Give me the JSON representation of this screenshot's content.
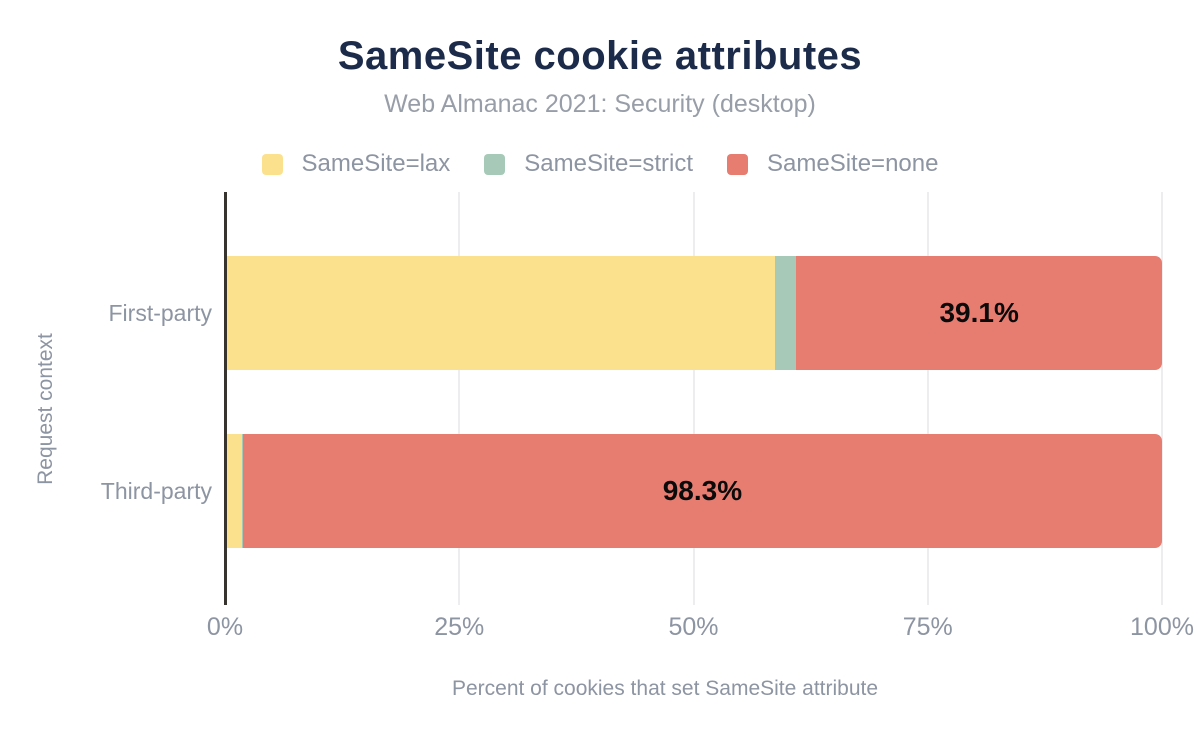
{
  "title": "SameSite cookie attributes",
  "subtitle": "Web Almanac 2021: Security (desktop)",
  "legend": [
    {
      "label": "SameSite=lax",
      "color": "#fbe18e"
    },
    {
      "label": "SameSite=strict",
      "color": "#a6cab7"
    },
    {
      "label": "SameSite=none",
      "color": "#e77c71"
    }
  ],
  "colors": {
    "title": "#1c2b4a",
    "text_gray": "#8d94a2",
    "axis_line": "#37332e",
    "gridline": "#ededef",
    "value_label": "#0b0b0b"
  },
  "chart_data": {
    "type": "bar",
    "orientation": "horizontal",
    "stacked": true,
    "title": "SameSite cookie attributes",
    "subtitle": "Web Almanac 2021: Security (desktop)",
    "categories": [
      "First-party",
      "Third-party"
    ],
    "series": [
      {
        "name": "SameSite=lax",
        "color": "#fbe18e",
        "values": [
          58.6,
          1.6
        ],
        "labels": [
          null,
          null
        ]
      },
      {
        "name": "SameSite=strict",
        "color": "#a6cab7",
        "values": [
          2.3,
          0.1
        ],
        "labels": [
          null,
          null
        ]
      },
      {
        "name": "SameSite=none",
        "color": "#e77c71",
        "values": [
          39.1,
          98.3
        ],
        "labels": [
          "39.1%",
          "98.3%"
        ]
      }
    ],
    "xlabel": "Percent of cookies that set SameSite attribute",
    "ylabel": "Request context",
    "xlim": [
      0,
      100
    ],
    "x_ticks": [
      {
        "value": 0,
        "label": "0%"
      },
      {
        "value": 25,
        "label": "25%"
      },
      {
        "value": 50,
        "label": "50%"
      },
      {
        "value": 75,
        "label": "75%"
      },
      {
        "value": 100,
        "label": "100%"
      }
    ],
    "grid": true,
    "legend_position": "top"
  }
}
